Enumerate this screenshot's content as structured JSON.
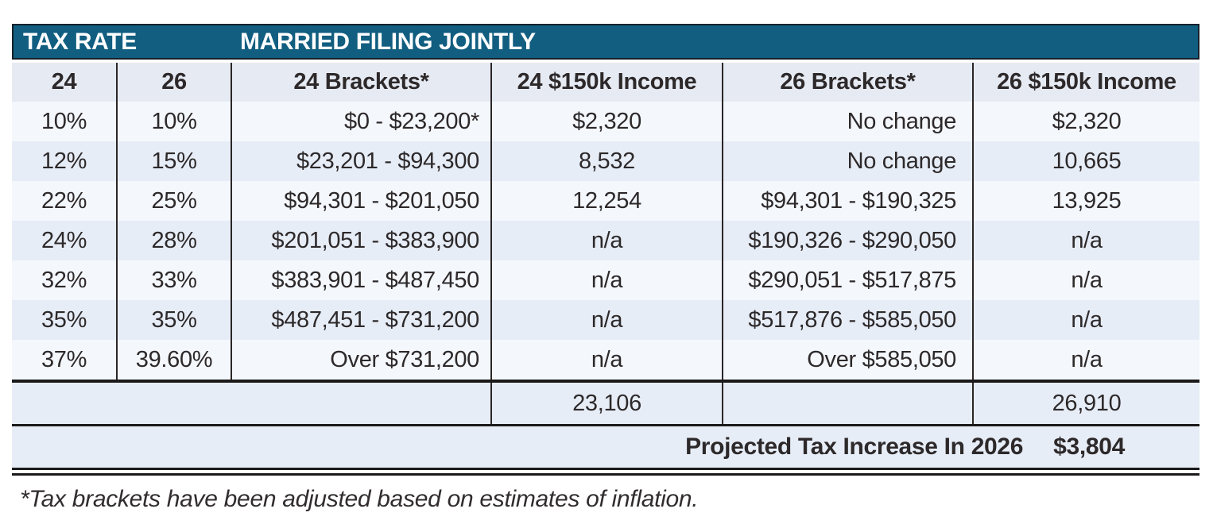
{
  "title_band": {
    "left": "TAX RATE",
    "right": "MARRIED FILING JOINTLY"
  },
  "columns": [
    "24",
    "26",
    "24 Brackets*",
    "24 $150k Income",
    "26 Brackets*",
    "26 $150k Income"
  ],
  "rows": [
    {
      "rate24": "10%",
      "rate26": "10%",
      "brackets24": "$0 - $23,200*",
      "income24": "$2,320",
      "brackets26": "No change",
      "income26": "$2,320"
    },
    {
      "rate24": "12%",
      "rate26": "15%",
      "brackets24": "$23,201 - $94,300",
      "income24": "8,532",
      "brackets26": "No change",
      "income26": "10,665"
    },
    {
      "rate24": "22%",
      "rate26": "25%",
      "brackets24": "$94,301 - $201,050",
      "income24": "12,254",
      "brackets26": "$94,301 - $190,325",
      "income26": "13,925"
    },
    {
      "rate24": "24%",
      "rate26": "28%",
      "brackets24": "$201,051 - $383,900",
      "income24": "n/a",
      "brackets26": "$190,326 - $290,050",
      "income26": "n/a"
    },
    {
      "rate24": "32%",
      "rate26": "33%",
      "brackets24": "$383,901 - $487,450",
      "income24": "n/a",
      "brackets26": "$290,051 - $517,875",
      "income26": "n/a"
    },
    {
      "rate24": "35%",
      "rate26": "35%",
      "brackets24": "$487,451 - $731,200",
      "income24": "n/a",
      "brackets26": "$517,876 - $585,050",
      "income26": "n/a"
    },
    {
      "rate24": "37%",
      "rate26": "39.60%",
      "brackets24": "Over $731,200",
      "income24": "n/a",
      "brackets26": "Over $585,050",
      "income26": "n/a"
    }
  ],
  "totals": {
    "income24": "23,106",
    "income26": "26,910"
  },
  "projected": {
    "label": "Projected Tax Increase In 2026",
    "value": "$3,804"
  },
  "footnote": "*Tax brackets have been adjusted based on estimates of inflation.",
  "colors": {
    "header_teal": "#115e80",
    "row_blue": "#e7edf7",
    "row_light": "#f4f7fc",
    "header_row_bg": "#e6eaf3",
    "border_dark": "#2a2627",
    "text": "#2d292a"
  }
}
